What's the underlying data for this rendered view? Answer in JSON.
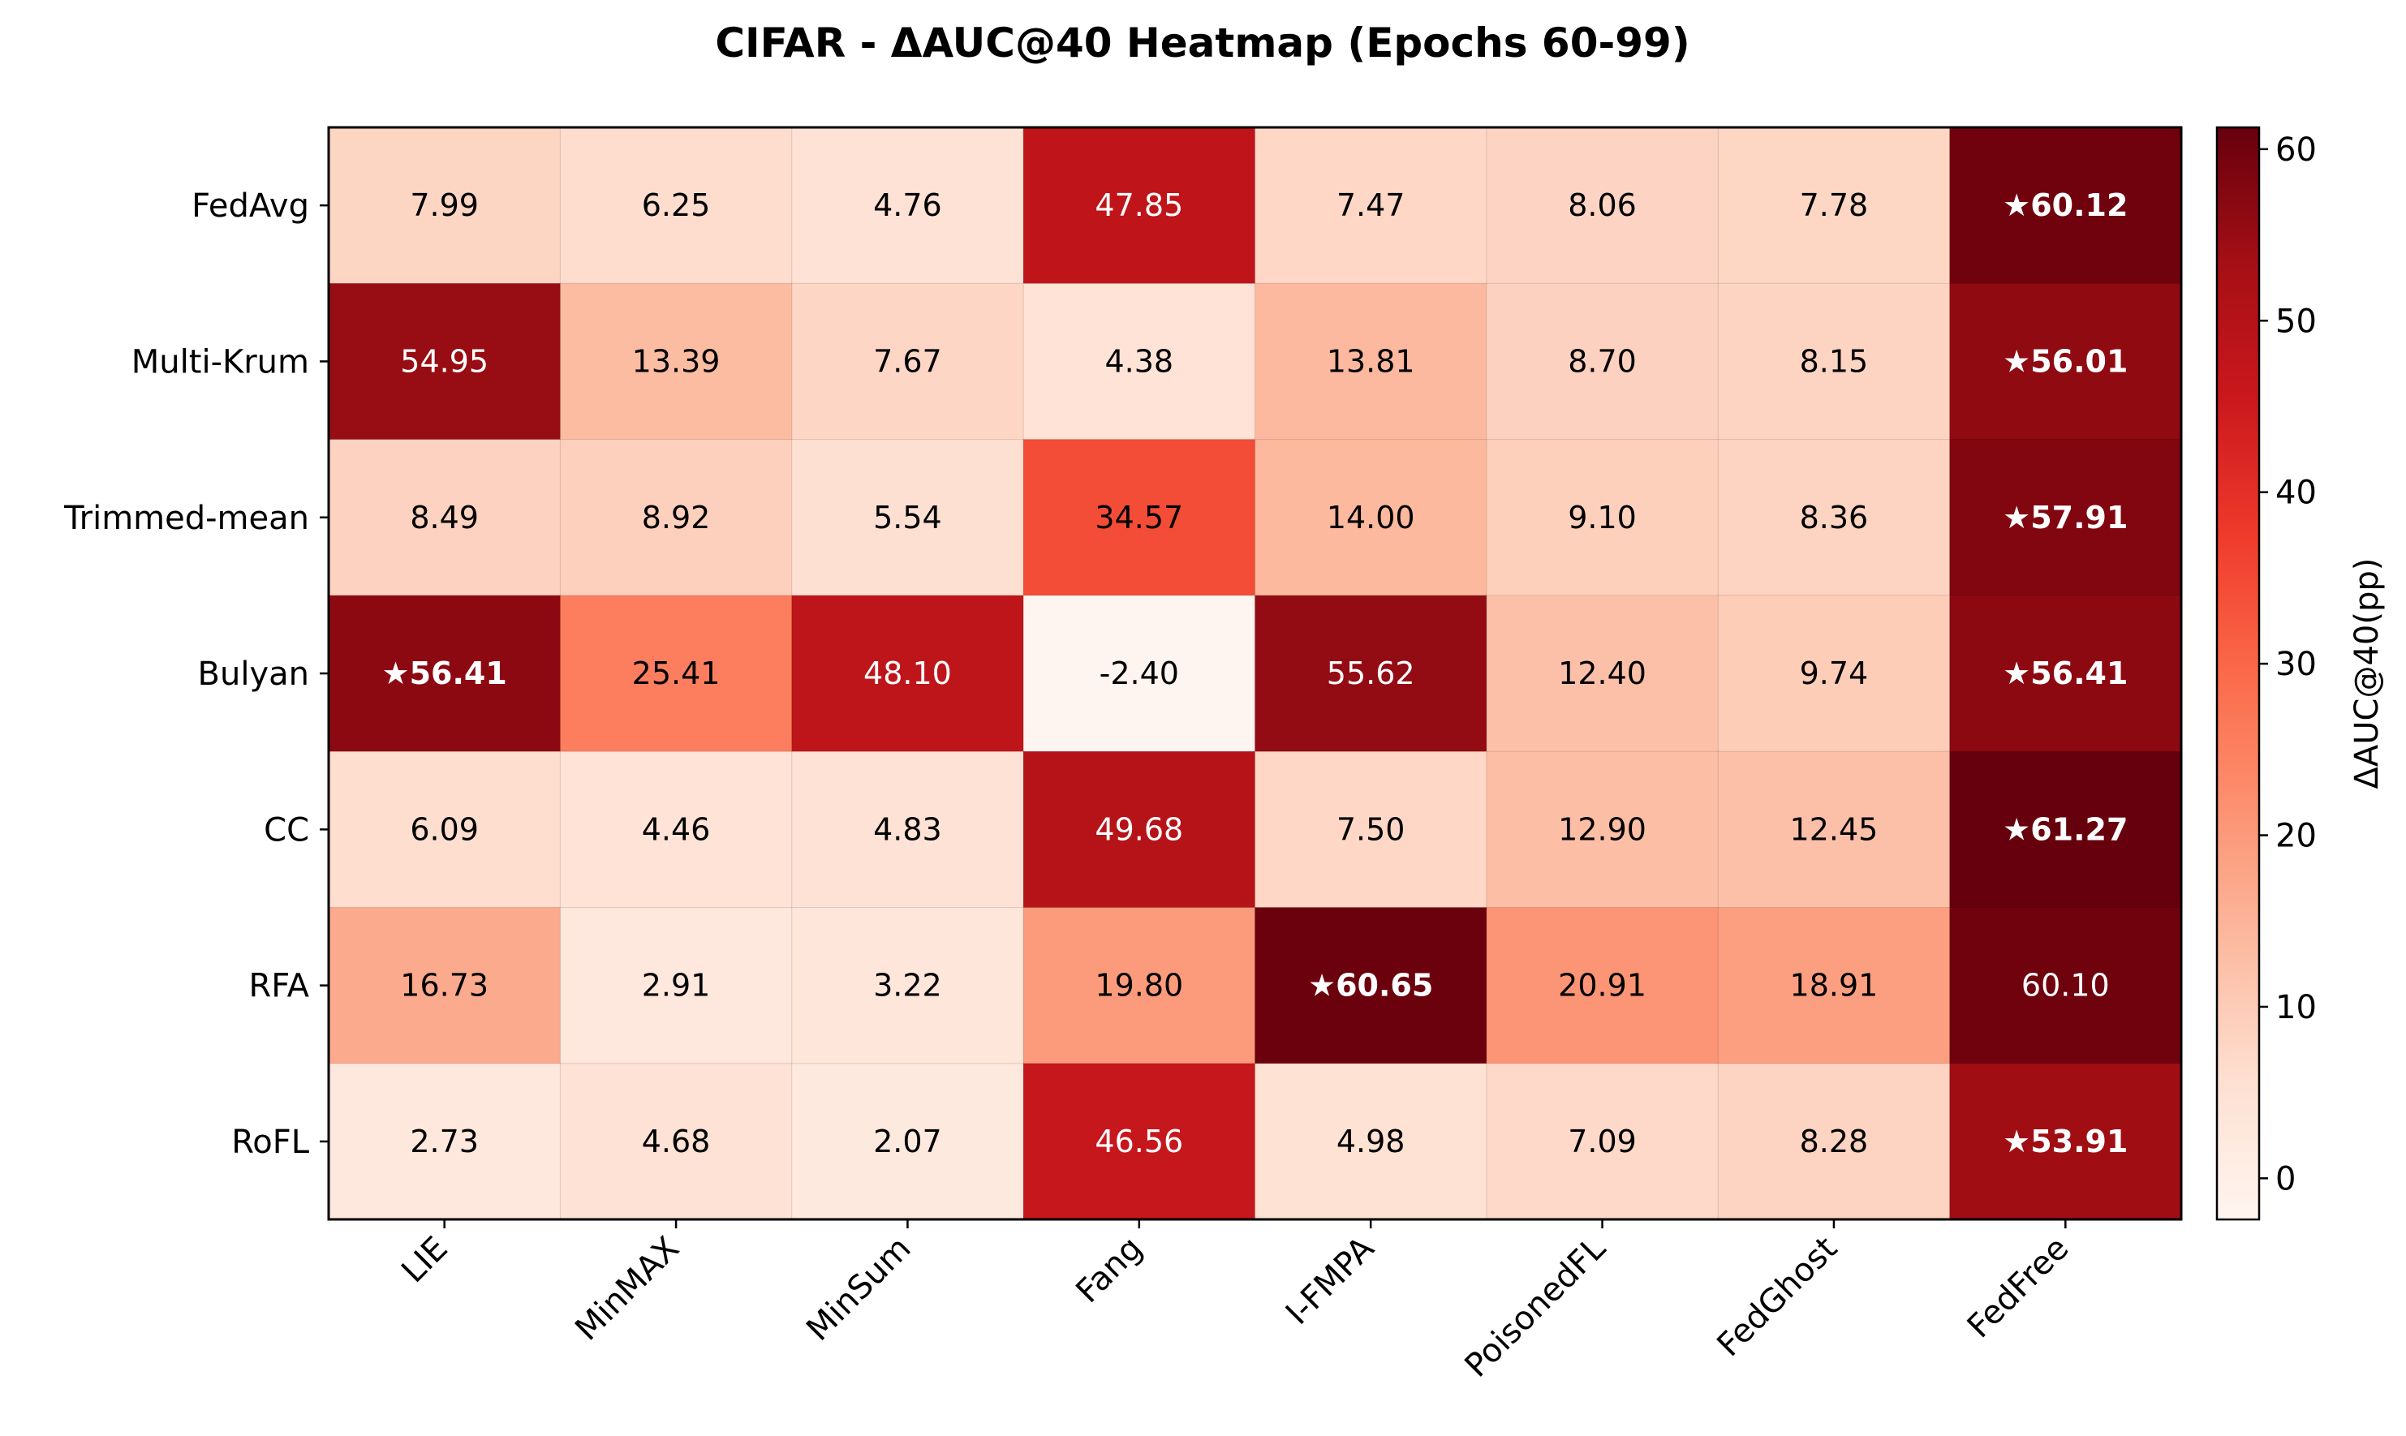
{
  "chart_data": {
    "type": "heatmap",
    "title": "CIFAR - ΔAUC@40 Heatmap (Epochs 60-99)",
    "columns": [
      "LIE",
      "MinMAX",
      "MinSum",
      "Fang",
      "I-FMPA",
      "PoisonedFL",
      "FedGhost",
      "FedFree"
    ],
    "rows": [
      "FedAvg",
      "Multi-Krum",
      "Trimmed-mean",
      "Bulyan",
      "CC",
      "RFA",
      "RoFL"
    ],
    "values": [
      [
        7.99,
        6.25,
        4.76,
        47.85,
        7.47,
        8.06,
        7.78,
        60.12
      ],
      [
        54.95,
        13.39,
        7.67,
        4.38,
        13.81,
        8.7,
        8.15,
        56.01
      ],
      [
        8.49,
        8.92,
        5.54,
        34.57,
        14.0,
        9.1,
        8.36,
        57.91
      ],
      [
        56.41,
        25.41,
        48.1,
        -2.4,
        55.62,
        12.4,
        9.74,
        56.41
      ],
      [
        6.09,
        4.46,
        4.83,
        49.68,
        7.5,
        12.9,
        12.45,
        61.27
      ],
      [
        16.73,
        2.91,
        3.22,
        19.8,
        60.65,
        20.91,
        18.91,
        60.1
      ],
      [
        2.73,
        4.68,
        2.07,
        46.56,
        4.98,
        7.09,
        8.28,
        53.91
      ]
    ],
    "cell_labels": [
      [
        "7.99",
        "6.25",
        "4.76",
        "47.85",
        "7.47",
        "8.06",
        "7.78",
        "★60.12"
      ],
      [
        "54.95",
        "13.39",
        "7.67",
        "4.38",
        "13.81",
        "8.70",
        "8.15",
        "★56.01"
      ],
      [
        "8.49",
        "8.92",
        "5.54",
        "34.57",
        "14.00",
        "9.10",
        "8.36",
        "★57.91"
      ],
      [
        "★56.41",
        "25.41",
        "48.10",
        "-2.40",
        "55.62",
        "12.40",
        "9.74",
        "★56.41"
      ],
      [
        "6.09",
        "4.46",
        "4.83",
        "49.68",
        "7.50",
        "12.90",
        "12.45",
        "★61.27"
      ],
      [
        "16.73",
        "2.91",
        "3.22",
        "19.80",
        "★60.65",
        "20.91",
        "18.91",
        "60.10"
      ],
      [
        "2.73",
        "4.68",
        "2.07",
        "46.56",
        "4.98",
        "7.09",
        "8.28",
        "★53.91"
      ]
    ],
    "colorbar": {
      "label": "ΔAUC@40(pp)",
      "range": [
        -2.4,
        61.27
      ],
      "ticks": [
        0,
        10,
        20,
        30,
        40,
        50,
        60
      ],
      "colormap": "Reds"
    }
  }
}
